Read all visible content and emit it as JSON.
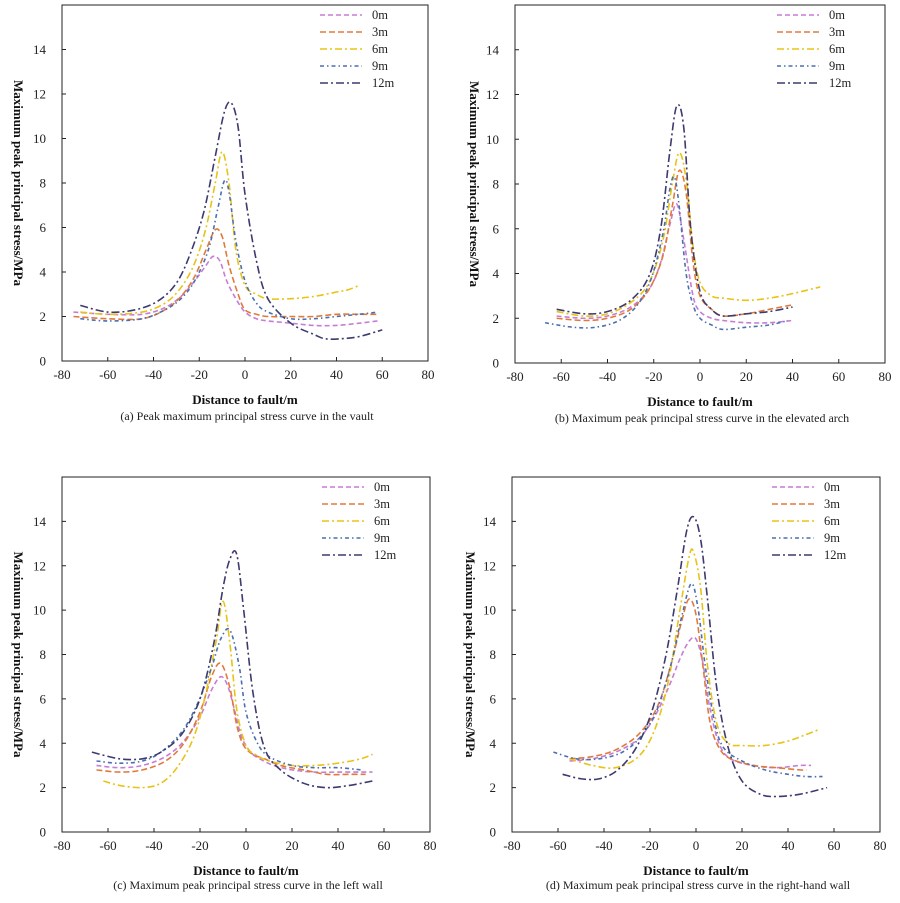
{
  "figure": {
    "xlabel": "Distance to fault/m",
    "ylabel": "Maximum peak principal stress/MPa"
  },
  "legend_labels": [
    "0m",
    "3m",
    "6m",
    "9m",
    "12m"
  ],
  "series_colors": {
    "0m": "#c77dd6",
    "3m": "#e07a3b",
    "6m": "#e8c317",
    "9m": "#4a6fb0",
    "12m": "#3c3a6e"
  },
  "chart_data": [
    {
      "type": "line",
      "panel": "a",
      "caption": "(a) Peak maximum principal stress curve in the vault",
      "xlabel": "Distance to fault/m",
      "ylabel": "Maximum peak principal stress/MPa",
      "xlim": [
        -80,
        80
      ],
      "ylim": [
        0,
        16
      ],
      "xticks": [
        -80,
        -60,
        -40,
        -20,
        0,
        20,
        40,
        60,
        80
      ],
      "yticks": [
        0,
        2,
        4,
        6,
        8,
        10,
        12,
        14
      ],
      "legend": "top-right",
      "series": [
        {
          "name": "0m",
          "x": [
            -75,
            -60,
            -45,
            -35,
            -28,
            -22,
            -17,
            -14,
            -11,
            -8,
            -4,
            0,
            5,
            10,
            20,
            30,
            40,
            50,
            58
          ],
          "y": [
            2.2,
            2.1,
            2.1,
            2.4,
            2.9,
            3.6,
            4.3,
            4.7,
            4.5,
            3.6,
            2.8,
            2.2,
            1.9,
            1.8,
            1.7,
            1.6,
            1.6,
            1.7,
            1.8
          ]
        },
        {
          "name": "3m",
          "x": [
            -75,
            -60,
            -45,
            -35,
            -28,
            -22,
            -17,
            -13,
            -10,
            -7,
            -3,
            0,
            5,
            10,
            20,
            30,
            40,
            50,
            58
          ],
          "y": [
            2.0,
            1.9,
            1.9,
            2.3,
            2.9,
            3.8,
            5.0,
            5.9,
            5.6,
            4.3,
            3.0,
            2.3,
            2.1,
            2.0,
            2.0,
            2.0,
            2.1,
            2.1,
            2.1
          ]
        },
        {
          "name": "6m",
          "x": [
            -72,
            -60,
            -45,
            -35,
            -28,
            -22,
            -17,
            -13,
            -10,
            -7,
            -4,
            0,
            5,
            10,
            20,
            30,
            40,
            45,
            50
          ],
          "y": [
            2.2,
            2.1,
            2.2,
            2.6,
            3.3,
            4.4,
            6.0,
            8.0,
            9.4,
            8.0,
            5.0,
            3.4,
            3.0,
            2.8,
            2.8,
            2.9,
            3.1,
            3.2,
            3.4
          ]
        },
        {
          "name": "9m",
          "x": [
            -72,
            -60,
            -45,
            -35,
            -28,
            -22,
            -16,
            -12,
            -9,
            -7,
            -4,
            0,
            5,
            10,
            20,
            30,
            40,
            50,
            58
          ],
          "y": [
            1.9,
            1.8,
            1.9,
            2.3,
            2.8,
            3.6,
            5.0,
            6.8,
            8.1,
            7.6,
            5.4,
            3.6,
            2.6,
            2.2,
            1.9,
            1.9,
            2.0,
            2.1,
            2.2
          ]
        },
        {
          "name": "12m",
          "x": [
            -72,
            -60,
            -48,
            -38,
            -30,
            -24,
            -18,
            -13,
            -9,
            -6,
            -3,
            0,
            5,
            10,
            20,
            30,
            35,
            42,
            50,
            60
          ],
          "y": [
            2.5,
            2.2,
            2.3,
            2.7,
            3.5,
            4.8,
            6.7,
            9.2,
            11.2,
            11.6,
            10.5,
            7.5,
            4.5,
            2.8,
            1.7,
            1.2,
            1.0,
            1.0,
            1.1,
            1.4
          ]
        }
      ]
    },
    {
      "type": "line",
      "panel": "b",
      "caption": "(b) Maximum peak principal stress curve in the elevated arch",
      "xlabel": "Distance to fault/m",
      "ylabel": "Maximum peak principal stress/MPa",
      "xlim": [
        -80,
        80
      ],
      "ylim": [
        0,
        16
      ],
      "xticks": [
        -80,
        -60,
        -40,
        -20,
        0,
        20,
        40,
        60,
        80
      ],
      "yticks": [
        0,
        2,
        4,
        6,
        8,
        10,
        12,
        14
      ],
      "legend": "top-right",
      "series": [
        {
          "name": "0m",
          "x": [
            -62,
            -50,
            -40,
            -30,
            -22,
            -17,
            -13,
            -10,
            -7,
            -3,
            0,
            5,
            10,
            20,
            30,
            40
          ],
          "y": [
            2.1,
            2.0,
            2.1,
            2.5,
            3.3,
            4.5,
            6.2,
            7.1,
            5.5,
            3.0,
            2.3,
            2.0,
            1.9,
            1.8,
            1.8,
            1.9
          ]
        },
        {
          "name": "3m",
          "x": [
            -62,
            -50,
            -40,
            -30,
            -22,
            -16,
            -12,
            -9,
            -6,
            -3,
            0,
            5,
            10,
            20,
            30,
            40
          ],
          "y": [
            2.0,
            1.9,
            2.0,
            2.4,
            3.3,
            4.8,
            7.0,
            8.6,
            7.6,
            4.5,
            3.0,
            2.4,
            2.1,
            2.2,
            2.4,
            2.6
          ]
        },
        {
          "name": "6m",
          "x": [
            -62,
            -50,
            -40,
            -30,
            -22,
            -16,
            -12,
            -9,
            -6,
            -3,
            0,
            5,
            10,
            20,
            30,
            40,
            52
          ],
          "y": [
            2.3,
            2.1,
            2.2,
            2.7,
            3.6,
            5.5,
            8.0,
            9.4,
            8.2,
            5.2,
            3.6,
            3.0,
            2.9,
            2.8,
            2.9,
            3.1,
            3.4
          ]
        },
        {
          "name": "9m",
          "x": [
            -67,
            -55,
            -45,
            -35,
            -27,
            -21,
            -16,
            -13,
            -11,
            -9,
            -6,
            -3,
            0,
            5,
            10,
            20,
            30,
            38
          ],
          "y": [
            1.8,
            1.6,
            1.6,
            1.9,
            2.6,
            3.8,
            5.8,
            7.8,
            8.3,
            7.0,
            4.0,
            2.6,
            2.0,
            1.7,
            1.5,
            1.6,
            1.7,
            1.9
          ]
        },
        {
          "name": "12m",
          "x": [
            -62,
            -50,
            -40,
            -30,
            -22,
            -17,
            -13,
            -10,
            -7,
            -4,
            0,
            5,
            10,
            20,
            30,
            40
          ],
          "y": [
            2.4,
            2.2,
            2.3,
            2.8,
            3.9,
            6.0,
            9.5,
            11.5,
            10.5,
            6.0,
            3.2,
            2.4,
            2.1,
            2.2,
            2.3,
            2.5
          ]
        }
      ]
    },
    {
      "type": "line",
      "panel": "c",
      "caption": "(c) Maximum peak principal stress curve in the left wall",
      "xlabel": "Distance to fault/m",
      "ylabel": "Maximum peak principal stress/MPa",
      "xlim": [
        -80,
        80
      ],
      "ylim": [
        0,
        16
      ],
      "xticks": [
        -80,
        -60,
        -40,
        -20,
        0,
        20,
        40,
        60,
        80
      ],
      "yticks": [
        0,
        2,
        4,
        6,
        8,
        10,
        12,
        14
      ],
      "legend": "top-right",
      "series": [
        {
          "name": "0m",
          "x": [
            -65,
            -55,
            -45,
            -35,
            -27,
            -20,
            -15,
            -11,
            -8,
            -5,
            -2,
            2,
            6,
            12,
            20,
            30,
            40,
            50,
            55
          ],
          "y": [
            3.0,
            2.9,
            3.0,
            3.4,
            4.1,
            5.2,
            6.4,
            7.0,
            6.6,
            5.5,
            4.3,
            3.6,
            3.3,
            3.0,
            2.8,
            2.7,
            2.7,
            2.7,
            2.7
          ]
        },
        {
          "name": "3m",
          "x": [
            -65,
            -55,
            -45,
            -35,
            -27,
            -20,
            -15,
            -11,
            -7,
            -4,
            -1,
            3,
            8,
            15,
            25,
            35,
            45,
            52
          ],
          "y": [
            2.8,
            2.7,
            2.8,
            3.2,
            4.0,
            5.4,
            7.0,
            7.6,
            6.5,
            4.8,
            3.9,
            3.5,
            3.3,
            3.0,
            2.8,
            2.6,
            2.6,
            2.6
          ]
        },
        {
          "name": "6m",
          "x": [
            -62,
            -55,
            -45,
            -37,
            -30,
            -23,
            -18,
            -13,
            -10,
            -7,
            -4,
            0,
            4,
            10,
            20,
            30,
            40,
            50,
            55
          ],
          "y": [
            2.3,
            2.1,
            2.0,
            2.2,
            2.9,
            4.2,
            6.0,
            8.6,
            10.4,
            8.5,
            5.5,
            3.9,
            3.5,
            3.2,
            3.0,
            3.0,
            3.1,
            3.3,
            3.5
          ]
        },
        {
          "name": "9m",
          "x": [
            -65,
            -55,
            -45,
            -37,
            -28,
            -21,
            -15,
            -11,
            -7,
            -3,
            0,
            5,
            10,
            20,
            30,
            40,
            50
          ],
          "y": [
            3.2,
            3.1,
            3.2,
            3.6,
            4.5,
            5.8,
            7.4,
            8.7,
            9.1,
            7.5,
            5.4,
            4.0,
            3.4,
            3.0,
            2.9,
            2.9,
            2.8
          ]
        },
        {
          "name": "12m",
          "x": [
            -67,
            -55,
            -45,
            -37,
            -28,
            -20,
            -14,
            -10,
            -7,
            -4,
            -1,
            3,
            8,
            15,
            25,
            35,
            45,
            55
          ],
          "y": [
            3.6,
            3.3,
            3.3,
            3.6,
            4.4,
            6.0,
            8.5,
            11.0,
            12.3,
            12.5,
            10.0,
            6.3,
            3.8,
            2.8,
            2.2,
            2.0,
            2.1,
            2.3
          ]
        }
      ]
    },
    {
      "type": "line",
      "panel": "d",
      "caption": "(d) Maximum peak principal stress curve in the right-hand wall",
      "xlabel": "Distance to fault/m",
      "ylabel": "Maximum peak principal stress/MPa",
      "xlim": [
        -80,
        80
      ],
      "ylim": [
        0,
        16
      ],
      "xticks": [
        -80,
        -60,
        -40,
        -20,
        0,
        20,
        40,
        60,
        80
      ],
      "yticks": [
        0,
        2,
        4,
        6,
        8,
        10,
        12,
        14
      ],
      "legend": "top-right",
      "series": [
        {
          "name": "0m",
          "x": [
            -55,
            -45,
            -35,
            -25,
            -18,
            -12,
            -7,
            -3,
            0,
            3,
            6,
            10,
            15,
            25,
            35,
            45,
            50
          ],
          "y": [
            3.2,
            3.3,
            3.6,
            4.2,
            5.2,
            6.5,
            7.8,
            8.6,
            8.7,
            7.6,
            5.6,
            4.0,
            3.3,
            3.0,
            2.9,
            3.0,
            3.0
          ]
        },
        {
          "name": "3m",
          "x": [
            -55,
            -45,
            -35,
            -25,
            -17,
            -11,
            -6,
            -3,
            0,
            3,
            6,
            10,
            15,
            25,
            35,
            45,
            48
          ],
          "y": [
            3.3,
            3.4,
            3.7,
            4.4,
            5.6,
            7.5,
            9.6,
            10.5,
            9.8,
            7.5,
            5.0,
            3.8,
            3.3,
            3.0,
            2.9,
            2.8,
            2.8
          ]
        },
        {
          "name": "6m",
          "x": [
            -55,
            -45,
            -35,
            -25,
            -18,
            -12,
            -7,
            -3,
            -1,
            2,
            5,
            9,
            14,
            20,
            30,
            40,
            48,
            53
          ],
          "y": [
            3.3,
            3.0,
            2.9,
            3.4,
            4.6,
            6.8,
            10.0,
            12.4,
            12.6,
            11.0,
            7.5,
            4.9,
            4.0,
            3.9,
            3.9,
            4.1,
            4.4,
            4.6
          ]
        },
        {
          "name": "9m",
          "x": [
            -62,
            -52,
            -42,
            -32,
            -24,
            -17,
            -11,
            -6,
            -2,
            1,
            4,
            8,
            12,
            20,
            30,
            40,
            48,
            55
          ],
          "y": [
            3.6,
            3.3,
            3.3,
            3.6,
            4.3,
            5.5,
            7.5,
            9.8,
            11.2,
            10.0,
            7.5,
            5.0,
            3.8,
            3.2,
            2.8,
            2.6,
            2.5,
            2.5
          ]
        },
        {
          "name": "12m",
          "x": [
            -58,
            -50,
            -42,
            -34,
            -26,
            -19,
            -13,
            -8,
            -4,
            -1,
            2,
            5,
            9,
            14,
            20,
            28,
            35,
            45,
            57
          ],
          "y": [
            2.6,
            2.4,
            2.4,
            2.8,
            3.8,
            5.5,
            8.0,
            11.0,
            13.6,
            14.2,
            13.2,
            10.5,
            6.5,
            3.8,
            2.3,
            1.7,
            1.6,
            1.7,
            2.0
          ]
        }
      ]
    }
  ]
}
